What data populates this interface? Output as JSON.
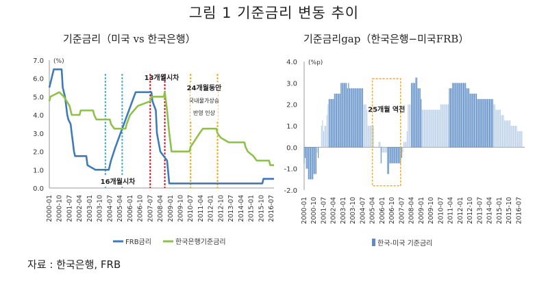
{
  "figure_title": "그림 1 기준금리 변동 추이",
  "source": "자료 : 한국은행, FRB",
  "colors": {
    "frb": "#3d7ab8",
    "bok": "#8ec04a",
    "spread": "#5b8cc6",
    "spread_light": "#b9cfe8",
    "cyan": "#4aaed6",
    "red": "#cc1c2c",
    "orange": "#f2ac1e"
  },
  "chart_data": [
    {
      "type": "line",
      "title": "기준금리（미국 vs 한국은행）",
      "ylabel": "(%)",
      "ylim": [
        0.0,
        7.0
      ],
      "yticks": [
        "0.0",
        "1.0",
        "2.0",
        "3.0",
        "4.0",
        "5.0",
        "6.0",
        "7.0"
      ],
      "xticks": [
        "2000-01",
        "2000-10",
        "2001-07",
        "2002-04",
        "2003-01",
        "2003-10",
        "2004-07",
        "2005-04",
        "2006-01",
        "2006-10",
        "2007-07",
        "2008-04",
        "2009-01",
        "2009-10",
        "2010-07",
        "2011-04",
        "2012-01",
        "2012-10",
        "2013-07",
        "2014-04",
        "2015-01",
        "2015-10",
        "2016-07"
      ],
      "legend": [
        "FRB금리",
        "한국은행기준금리"
      ],
      "legend_position": "bottom",
      "series": [
        {
          "name": "FRB금리",
          "points": [
            [
              "2000-01",
              5.5
            ],
            [
              "2000-03",
              6.0
            ],
            [
              "2000-05",
              6.5
            ],
            [
              "2000-12",
              6.5
            ],
            [
              "2001-01",
              5.5
            ],
            [
              "2001-03",
              5.0
            ],
            [
              "2001-05",
              4.0
            ],
            [
              "2001-06",
              3.75
            ],
            [
              "2001-08",
              3.5
            ],
            [
              "2001-09",
              3.0
            ],
            [
              "2001-10",
              2.5
            ],
            [
              "2001-11",
              2.0
            ],
            [
              "2001-12",
              1.75
            ],
            [
              "2002-10",
              1.75
            ],
            [
              "2002-11",
              1.25
            ],
            [
              "2003-06",
              1.0
            ],
            [
              "2004-06",
              1.0
            ],
            [
              "2004-08",
              1.5
            ],
            [
              "2004-12",
              2.25
            ],
            [
              "2005-06",
              3.25
            ],
            [
              "2005-12",
              4.25
            ],
            [
              "2006-06",
              5.25
            ],
            [
              "2007-08",
              5.25
            ],
            [
              "2007-09",
              4.75
            ],
            [
              "2007-12",
              4.25
            ],
            [
              "2008-01",
              3.0
            ],
            [
              "2008-04",
              2.0
            ],
            [
              "2008-10",
              1.5
            ],
            [
              "2008-12",
              0.25
            ],
            [
              "2015-11",
              0.25
            ],
            [
              "2015-12",
              0.5
            ],
            [
              "2016-10",
              0.5
            ]
          ]
        },
        {
          "name": "한국은행기준금리",
          "points": [
            [
              "2000-01",
              4.75
            ],
            [
              "2000-02",
              5.0
            ],
            [
              "2000-10",
              5.25
            ],
            [
              "2001-02",
              5.0
            ],
            [
              "2001-07",
              4.5
            ],
            [
              "2001-09",
              4.0
            ],
            [
              "2002-04",
              4.0
            ],
            [
              "2002-05",
              4.25
            ],
            [
              "2003-04",
              4.25
            ],
            [
              "2003-05",
              4.0
            ],
            [
              "2003-07",
              3.75
            ],
            [
              "2004-07",
              3.75
            ],
            [
              "2004-08",
              3.5
            ],
            [
              "2004-11",
              3.25
            ],
            [
              "2005-09",
              3.25
            ],
            [
              "2005-10",
              3.5
            ],
            [
              "2006-01",
              4.0
            ],
            [
              "2006-08",
              4.5
            ],
            [
              "2007-07",
              4.75
            ],
            [
              "2007-08",
              5.0
            ],
            [
              "2008-07",
              5.0
            ],
            [
              "2008-08",
              5.25
            ],
            [
              "2008-10",
              4.25
            ],
            [
              "2008-12",
              3.0
            ],
            [
              "2009-01",
              2.5
            ],
            [
              "2009-02",
              2.0
            ],
            [
              "2010-06",
              2.0
            ],
            [
              "2010-07",
              2.25
            ],
            [
              "2011-03",
              3.0
            ],
            [
              "2011-06",
              3.25
            ],
            [
              "2012-06",
              3.25
            ],
            [
              "2012-07",
              3.0
            ],
            [
              "2012-10",
              2.75
            ],
            [
              "2013-05",
              2.5
            ],
            [
              "2014-07",
              2.5
            ],
            [
              "2014-08",
              2.25
            ],
            [
              "2014-10",
              2.0
            ],
            [
              "2015-03",
              1.75
            ],
            [
              "2015-06",
              1.5
            ],
            [
              "2016-05",
              1.5
            ],
            [
              "2016-06",
              1.25
            ],
            [
              "2016-10",
              1.25
            ]
          ]
        }
      ],
      "annotations": [
        {
          "text": "16개월시차",
          "color": "cyan"
        },
        {
          "text": "13개월시차",
          "color": "red"
        },
        {
          "lines": [
            "24개월동안",
            "국내물가상승",
            "반영 인상"
          ],
          "color": "orange"
        }
      ]
    },
    {
      "type": "bar",
      "title": "기준금리gap（한국은행−미국FRB）",
      "ylabel": "(%p)",
      "ylim": [
        -2.0,
        4.0
      ],
      "yticks": [
        "-2.0",
        "-1.0",
        "0.0",
        "1.0",
        "2.0",
        "3.0",
        "4.0"
      ],
      "xticks": [
        "2000-01",
        "2000-10",
        "2001-07",
        "2002-04",
        "2003-01",
        "2003-10",
        "2004-07",
        "2005-04",
        "2006-01",
        "2006-10",
        "2007-07",
        "2008-04",
        "2009-01",
        "2009-10",
        "2010-07",
        "2011-04",
        "2012-01",
        "2012-10",
        "2013-07",
        "2014-04",
        "2015-01",
        "2015-10",
        "2016-07"
      ],
      "legend": [
        "한국-미국 기준금리"
      ],
      "legend_position": "bottom",
      "series": [
        {
          "name": "한국-미국 기준금리",
          "derived_from": "한국은행기준금리 − FRB금리 (monthly)"
        }
      ],
      "annotations": [
        {
          "text": "25개월 역전",
          "color": "orange"
        }
      ]
    }
  ]
}
